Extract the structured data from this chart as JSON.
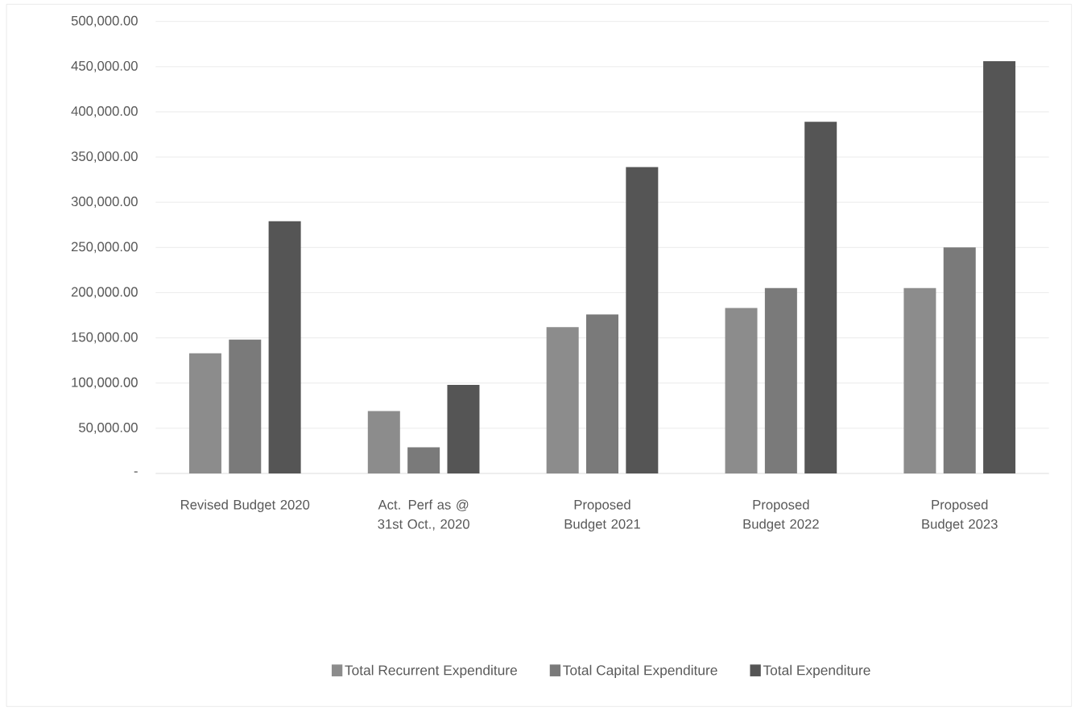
{
  "chart_data": {
    "type": "bar",
    "categories": [
      "Revised Budget 2020",
      "Act. Perf as @ 31st Oct., 2020",
      "Proposed Budget 2021",
      "Proposed Budget 2022",
      "Proposed Budget 2023"
    ],
    "series": [
      {
        "name": "Total Recurrent Expenditure",
        "color": "#8c8c8c",
        "values": [
          133000,
          69000,
          162000,
          183000,
          205000
        ]
      },
      {
        "name": "Total Capital Expenditure",
        "color": "#7a7a7a",
        "values": [
          148000,
          29000,
          176000,
          205000,
          250000
        ]
      },
      {
        "name": "Total Expenditure",
        "color": "#555555",
        "values": [
          279000,
          98000,
          339000,
          389000,
          456000
        ]
      }
    ],
    "ylim": [
      0,
      500000
    ],
    "yticks": [
      {
        "value": 0,
        "label": "-"
      },
      {
        "value": 50000,
        "label": "50,000.00"
      },
      {
        "value": 100000,
        "label": "100,000.00"
      },
      {
        "value": 150000,
        "label": "150,000.00"
      },
      {
        "value": 200000,
        "label": "200,000.00"
      },
      {
        "value": 250000,
        "label": "250,000.00"
      },
      {
        "value": 300000,
        "label": "300,000.00"
      },
      {
        "value": 350000,
        "label": "350,000.00"
      },
      {
        "value": 400000,
        "label": "400,000.00"
      },
      {
        "value": 450000,
        "label": "450,000.00"
      },
      {
        "value": 500000,
        "label": "500,000.00"
      }
    ],
    "grid": "y",
    "legend": "bottom"
  }
}
